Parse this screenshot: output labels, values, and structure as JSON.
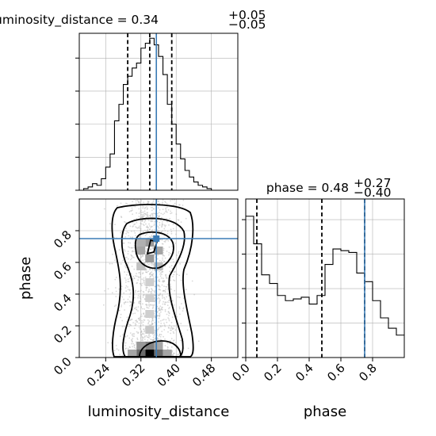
{
  "chart_data": [
    {
      "type": "histogram",
      "panel": "luminosity_distance marginal",
      "title_param": "luminosity_distance",
      "title_value": "0.34",
      "title_plus": "+0.05",
      "title_minus": "−0.05",
      "xlim": [
        0.18,
        0.54
      ],
      "bin_edges": [
        0.19,
        0.2,
        0.21,
        0.22,
        0.23,
        0.24,
        0.25,
        0.26,
        0.27,
        0.28,
        0.29,
        0.3,
        0.31,
        0.32,
        0.33,
        0.34,
        0.35,
        0.36,
        0.37,
        0.38,
        0.39,
        0.4,
        0.41,
        0.42,
        0.43,
        0.44,
        0.45,
        0.46,
        0.47,
        0.48,
        0.49
      ],
      "counts": [
        0.01,
        0.02,
        0.04,
        0.03,
        0.07,
        0.14,
        0.22,
        0.42,
        0.52,
        0.64,
        0.69,
        0.74,
        0.77,
        0.86,
        0.89,
        0.92,
        0.88,
        0.81,
        0.7,
        0.52,
        0.4,
        0.28,
        0.19,
        0.12,
        0.08,
        0.05,
        0.03,
        0.02,
        0.01,
        0.0
      ],
      "quantiles": [
        0.29,
        0.34,
        0.39
      ],
      "truth": 0.355
    },
    {
      "type": "heatmap",
      "panel": "2D density luminosity_distance vs phase",
      "xlabel": "luminosity_distance",
      "ylabel": "phase",
      "xlim": [
        0.18,
        0.54
      ],
      "ylim": [
        0.0,
        1.0
      ],
      "x_ticks": [
        "0.24",
        "0.32",
        "0.40",
        "0.48"
      ],
      "y_ticks": [
        "0.0",
        "0.2",
        "0.4",
        "0.6",
        "0.8"
      ],
      "truth_point": [
        0.355,
        0.75
      ],
      "density_cells": [
        {
          "x": 0.34,
          "y": 0.025,
          "v": 1.0
        },
        {
          "x": 0.36,
          "y": 0.025,
          "v": 0.55
        },
        {
          "x": 0.32,
          "y": 0.025,
          "v": 0.55
        },
        {
          "x": 0.3,
          "y": 0.025,
          "v": 0.3
        },
        {
          "x": 0.38,
          "y": 0.025,
          "v": 0.3
        },
        {
          "x": 0.34,
          "y": 0.075,
          "v": 0.45
        },
        {
          "x": 0.32,
          "y": 0.075,
          "v": 0.35
        },
        {
          "x": 0.36,
          "y": 0.075,
          "v": 0.3
        },
        {
          "x": 0.34,
          "y": 0.625,
          "v": 0.35
        },
        {
          "x": 0.32,
          "y": 0.675,
          "v": 0.3
        },
        {
          "x": 0.36,
          "y": 0.675,
          "v": 0.3
        },
        {
          "x": 0.34,
          "y": 0.725,
          "v": 0.35
        },
        {
          "x": 0.32,
          "y": 0.725,
          "v": 0.25
        },
        {
          "x": 0.36,
          "y": 0.575,
          "v": 0.2
        },
        {
          "x": 0.32,
          "y": 0.575,
          "v": 0.18
        },
        {
          "x": 0.34,
          "y": 0.475,
          "v": 0.12
        },
        {
          "x": 0.34,
          "y": 0.375,
          "v": 0.12
        },
        {
          "x": 0.34,
          "y": 0.275,
          "v": 0.12
        },
        {
          "x": 0.34,
          "y": 0.175,
          "v": 0.15
        }
      ]
    },
    {
      "type": "histogram",
      "panel": "phase marginal",
      "title_param": "phase",
      "title_value": "0.48",
      "title_plus": "+0.27",
      "title_minus": "−0.40",
      "xlabel": "phase",
      "xlim": [
        0.0,
        1.0
      ],
      "x_ticks": [
        "0.0",
        "0.2",
        "0.4",
        "0.6",
        "0.8"
      ],
      "bin_edges": [
        0.0,
        0.05,
        0.1,
        0.15,
        0.2,
        0.25,
        0.3,
        0.35,
        0.4,
        0.45,
        0.5,
        0.55,
        0.6,
        0.65,
        0.7,
        0.75,
        0.8,
        0.85,
        0.9,
        0.95,
        1.0
      ],
      "counts": [
        0.82,
        0.66,
        0.48,
        0.43,
        0.36,
        0.33,
        0.34,
        0.35,
        0.31,
        0.36,
        0.54,
        0.63,
        0.62,
        0.61,
        0.49,
        0.44,
        0.33,
        0.23,
        0.17,
        0.13
      ],
      "quantiles": [
        0.07,
        0.48,
        0.75
      ],
      "truth": 0.75
    }
  ]
}
